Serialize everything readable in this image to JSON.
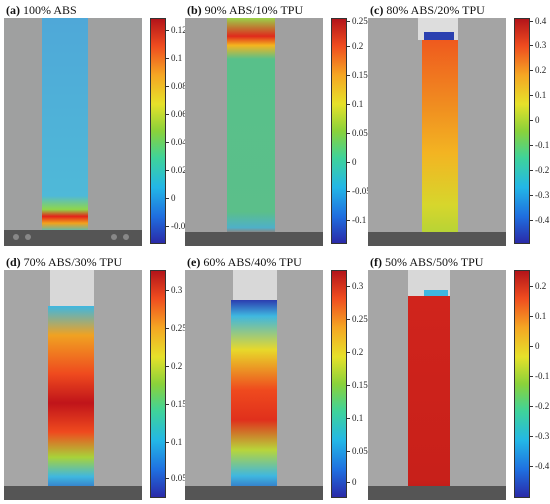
{
  "panels": [
    {
      "id": "a",
      "label": "(a)",
      "caption": "100% ABS",
      "colorbar": [
        "0.12",
        "0.1",
        "0.08",
        "0.06",
        "0.04",
        "0.02",
        "0",
        "-0.02"
      ]
    },
    {
      "id": "b",
      "label": "(b)",
      "caption": "90% ABS/10% TPU",
      "colorbar": [
        "0.25",
        "0.2",
        "0.15",
        "0.1",
        "0.05",
        "0",
        "-0.05",
        "-0.1"
      ]
    },
    {
      "id": "c",
      "label": "(c)",
      "caption": "80% ABS/20% TPU",
      "colorbar": [
        "0.4",
        "0.3",
        "0.2",
        "0.1",
        "0",
        "-0.1",
        "-0.2",
        "-0.3",
        "-0.4"
      ]
    },
    {
      "id": "d",
      "label": "(d)",
      "caption": "70% ABS/30% TPU",
      "colorbar": [
        "0.3",
        "0.25",
        "0.2",
        "0.15",
        "0.1",
        "0.05"
      ]
    },
    {
      "id": "e",
      "label": "(e)",
      "caption": "60% ABS/40% TPU",
      "colorbar": [
        "0.3",
        "0.25",
        "0.2",
        "0.15",
        "0.1",
        "0.05",
        "0"
      ]
    },
    {
      "id": "f",
      "label": "(f)",
      "caption": "50% ABS/50% TPU",
      "colorbar": [
        "0.2",
        "0.1",
        "0",
        "-0.1",
        "-0.2",
        "-0.3",
        "-0.4"
      ]
    }
  ]
}
